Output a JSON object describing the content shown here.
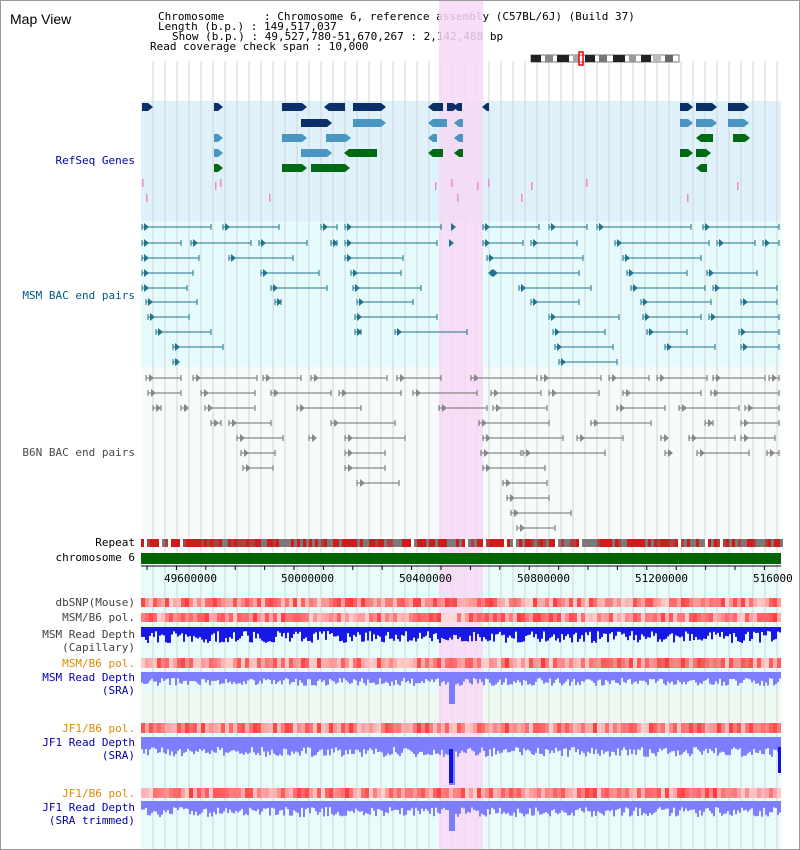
{
  "title": "Map View",
  "info": {
    "chromosome": "Chromosome      : Chromosome 6, reference assembly (C57BL/6J) (Build 37)",
    "length": "Length (b.p.) : 149,517,037",
    "show": "Show (b.p.) : 49,527,780-51,670,267 : 2,142,488 bp",
    "read_coverage": "Read coverage check span : 10,000"
  },
  "tracks": {
    "refseq": "RefSeq Genes",
    "msm_bac": "MSM BAC end pairs",
    "b6n_bac": "B6N BAC end pairs",
    "repeat": "Repeat",
    "chromosome": "chromosome 6",
    "dbsnp": "dbSNP(Mouse)",
    "msm_b6_pol_1": "MSM/B6 pol.",
    "msm_read_depth_cap_1": "MSM Read Depth",
    "msm_read_depth_cap_2": "(Capillary)",
    "msm_b6_pol_2": "MSM/B6 pol.",
    "msm_read_depth_sra_1": "MSM Read Depth",
    "msm_read_depth_sra_2": "(SRA)",
    "jf1_b6_pol_1": "JF1/B6 pol.",
    "jf1_read_depth_sra_1": "JF1 Read Depth",
    "jf1_read_depth_sra_2": "(SRA)",
    "jf1_b6_pol_2": "JF1/B6 pol.",
    "jf1_read_depth_trim_1": "JF1 Read Depth",
    "jf1_read_depth_trim_2": "(SRA trimmed)"
  },
  "axis": {
    "ticks": [
      "49600000",
      "50000000",
      "50400000",
      "50800000",
      "51200000",
      "516000"
    ]
  },
  "colors": {
    "refseq_bg": "#dff1fb",
    "bac_bg": "#e6fbfb",
    "highlight": "#f7d8f5",
    "gene_dark": "#0b3068",
    "gene_mid": "#4a96c0",
    "gene_green": "#006a12",
    "msm_line": "#23738c",
    "b6n_line": "#6e6e6e",
    "chrom": "#006400",
    "snp": "#ff6060",
    "depth_blue": "#1717e6",
    "depth_light": "#7d7dff",
    "label_blue": "#0000aa",
    "label_orange": "#e08a00"
  }
}
